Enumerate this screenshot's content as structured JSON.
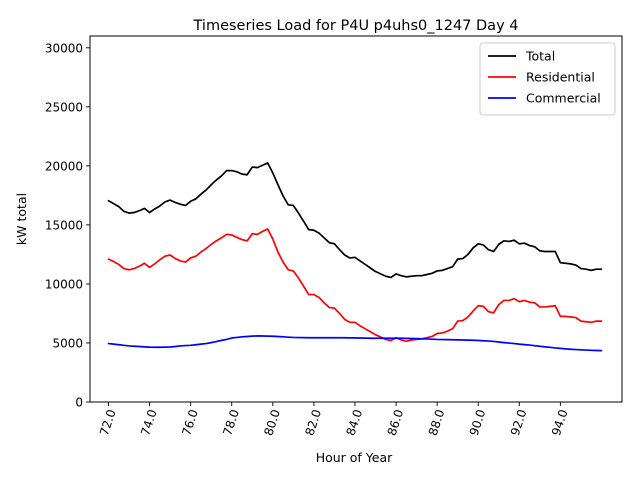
{
  "chart_data": {
    "type": "line",
    "title": "Timeseries Load for P4U p4uhs0_1247  Day 4",
    "xlabel": "Hour of Year",
    "ylabel": "kW total",
    "xlim": [
      71.1,
      97.0
    ],
    "ylim": [
      0,
      31000
    ],
    "xticks": [
      72,
      74,
      76,
      78,
      80,
      82,
      84,
      86,
      88,
      90,
      92,
      94
    ],
    "xtick_labels": [
      "72.0",
      "74.0",
      "76.0",
      "78.0",
      "80.0",
      "82.0",
      "84.0",
      "86.0",
      "88.0",
      "90.0",
      "92.0",
      "94.0"
    ],
    "yticks": [
      0,
      5000,
      10000,
      15000,
      20000,
      25000,
      30000
    ],
    "ytick_labels": [
      "0",
      "5000",
      "10000",
      "15000",
      "20000",
      "25000",
      "30000"
    ],
    "legend_position": "top-right",
    "grid": false,
    "x": [
      72.0,
      72.25,
      72.5,
      72.75,
      73.0,
      73.25,
      73.5,
      73.75,
      74.0,
      74.25,
      74.5,
      74.75,
      75.0,
      75.25,
      75.5,
      75.75,
      76.0,
      76.25,
      76.5,
      76.75,
      77.0,
      77.25,
      77.5,
      77.75,
      78.0,
      78.25,
      78.5,
      78.75,
      79.0,
      79.25,
      79.5,
      79.75,
      80.0,
      80.25,
      80.5,
      80.75,
      81.0,
      81.25,
      81.5,
      81.75,
      82.0,
      82.25,
      82.5,
      82.75,
      83.0,
      83.25,
      83.5,
      83.75,
      84.0,
      84.25,
      84.5,
      84.75,
      85.0,
      85.25,
      85.5,
      85.75,
      86.0,
      86.25,
      86.5,
      86.75,
      87.0,
      87.25,
      87.5,
      87.75,
      88.0,
      88.25,
      88.5,
      88.75,
      89.0,
      89.25,
      89.5,
      89.75,
      90.0,
      90.25,
      90.5,
      90.75,
      91.0,
      91.25,
      91.5,
      91.75,
      92.0,
      92.25,
      92.5,
      92.75,
      93.0,
      93.25,
      93.5,
      93.75,
      94.0,
      94.25,
      94.5,
      94.75,
      95.0,
      95.25,
      95.5,
      95.75,
      96.0
    ],
    "series": [
      {
        "name": "Total",
        "color": "#000000",
        "values": [
          17050,
          16800,
          16550,
          16150,
          16000,
          16050,
          16200,
          16400,
          16050,
          16350,
          16600,
          16950,
          17100,
          16900,
          16750,
          16650,
          17000,
          17200,
          17600,
          17950,
          18400,
          18800,
          19150,
          19600,
          19600,
          19500,
          19300,
          19250,
          19900,
          19850,
          20050,
          20250,
          19400,
          18400,
          17450,
          16700,
          16650,
          16000,
          15300,
          14600,
          14550,
          14300,
          13900,
          13500,
          13400,
          12900,
          12450,
          12200,
          12250,
          11950,
          11650,
          11350,
          11050,
          10850,
          10650,
          10550,
          10850,
          10700,
          10600,
          10650,
          10700,
          10700,
          10800,
          10900,
          11100,
          11150,
          11300,
          11450,
          12100,
          12150,
          12500,
          13050,
          13400,
          13300,
          12900,
          12750,
          13350,
          13650,
          13600,
          13700,
          13400,
          13450,
          13250,
          13150,
          12800,
          12750,
          12750,
          12750,
          11800,
          11750,
          11700,
          11600,
          11300,
          11250,
          11150,
          11250,
          11250
        ]
      },
      {
        "name": "Residential",
        "color": "#ff0000",
        "values": [
          12100,
          11900,
          11650,
          11300,
          11200,
          11300,
          11500,
          11750,
          11400,
          11700,
          12050,
          12350,
          12450,
          12150,
          11950,
          11850,
          12200,
          12350,
          12700,
          13000,
          13350,
          13650,
          13900,
          14200,
          14150,
          13950,
          13750,
          13650,
          14250,
          14200,
          14450,
          14650,
          13800,
          12700,
          11850,
          11200,
          11100,
          10500,
          9800,
          9100,
          9100,
          8850,
          8400,
          8000,
          7950,
          7500,
          7000,
          6750,
          6750,
          6450,
          6200,
          5950,
          5700,
          5500,
          5300,
          5200,
          5450,
          5250,
          5150,
          5250,
          5300,
          5350,
          5450,
          5550,
          5800,
          5850,
          6000,
          6200,
          6850,
          6900,
          7200,
          7700,
          8150,
          8100,
          7650,
          7550,
          8250,
          8600,
          8600,
          8750,
          8500,
          8600,
          8450,
          8400,
          8050,
          8050,
          8100,
          8150,
          7250,
          7250,
          7200,
          7150,
          6850,
          6800,
          6750,
          6850,
          6850
        ]
      },
      {
        "name": "Commercial",
        "color": "#0000ff",
        "values": [
          4950,
          4900,
          4850,
          4800,
          4750,
          4720,
          4700,
          4670,
          4650,
          4640,
          4640,
          4650,
          4660,
          4700,
          4750,
          4780,
          4800,
          4850,
          4900,
          4950,
          5030,
          5120,
          5220,
          5300,
          5420,
          5470,
          5520,
          5550,
          5580,
          5600,
          5590,
          5580,
          5570,
          5550,
          5520,
          5490,
          5470,
          5460,
          5450,
          5440,
          5440,
          5440,
          5440,
          5440,
          5440,
          5440,
          5440,
          5430,
          5430,
          5420,
          5410,
          5400,
          5400,
          5400,
          5400,
          5400,
          5400,
          5400,
          5390,
          5380,
          5370,
          5350,
          5340,
          5320,
          5300,
          5290,
          5280,
          5270,
          5260,
          5250,
          5240,
          5230,
          5210,
          5190,
          5160,
          5130,
          5080,
          5030,
          4990,
          4950,
          4900,
          4860,
          4820,
          4770,
          4720,
          4670,
          4630,
          4580,
          4540,
          4500,
          4470,
          4440,
          4420,
          4400,
          4380,
          4360,
          4350
        ]
      }
    ]
  }
}
